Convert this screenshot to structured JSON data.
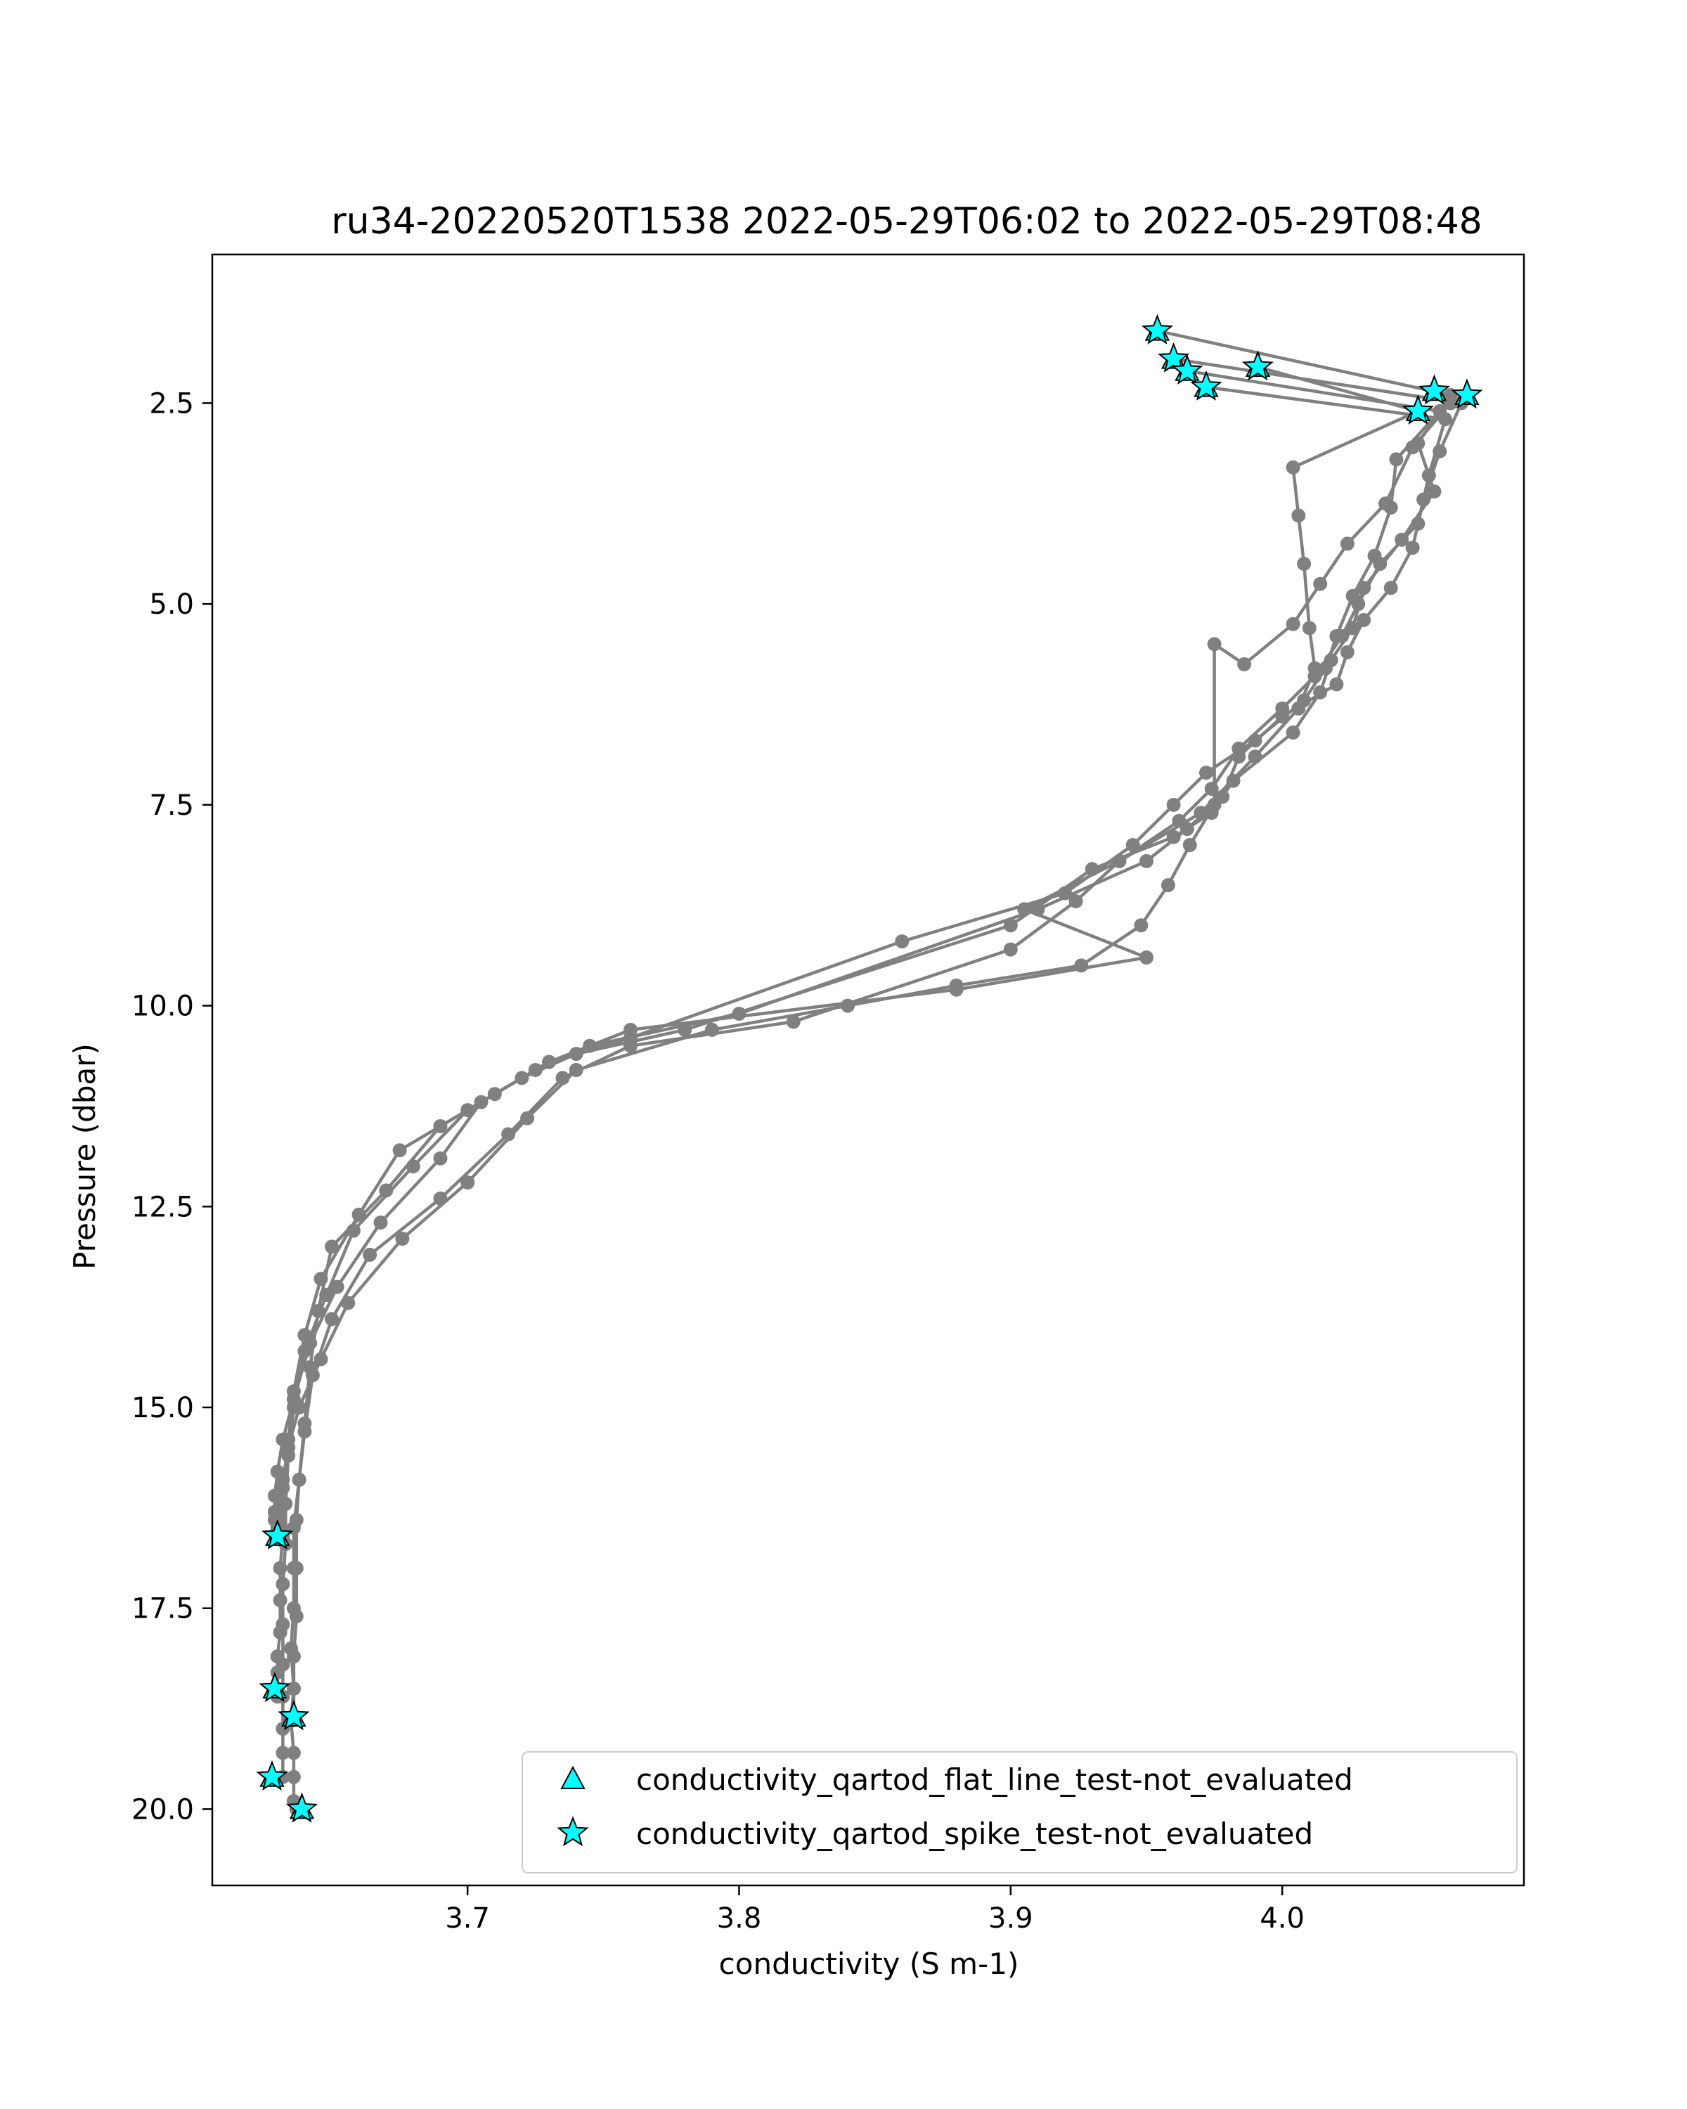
{
  "chart_data": {
    "type": "line",
    "title": "ru34-20220520T1538 2022-05-29T06:02 to 2022-05-29T08:48",
    "xlabel": "conductivity (S m-1)",
    "ylabel": "Pressure (dbar)",
    "xlim": [
      3.606,
      4.089
    ],
    "ylim": [
      20.95,
      0.65
    ],
    "y_inverted": true,
    "xticks": [
      3.7,
      3.8,
      3.9,
      4.0
    ],
    "xtick_labels": [
      "3.7",
      "3.8",
      "3.9",
      "4.0"
    ],
    "yticks": [
      2.5,
      5.0,
      7.5,
      10.0,
      12.5,
      15.0,
      17.5,
      20.0
    ],
    "ytick_labels": [
      "2.5",
      "5.0",
      "7.5",
      "10.0",
      "12.5",
      "15.0",
      "17.5",
      "20.0"
    ],
    "grid": false,
    "colors": {
      "profile_line": "#808080",
      "flag_fill": "#00ffff",
      "flag_edge": "#000000"
    },
    "legend": {
      "placement": "lower-right",
      "entries": [
        {
          "label": "conductivity_qartod_flat_line_test-not_evaluated",
          "marker": "triangle"
        },
        {
          "label": "conductivity_qartod_spike_test-not_evaluated",
          "marker": "star"
        }
      ]
    },
    "series": [
      {
        "x": [
          3.954,
          4.062,
          4.05,
          4.056,
          4.044,
          4.03,
          4.026,
          4.018,
          4.014,
          4.004,
          3.982,
          3.974,
          3.96,
          3.93,
          3.9,
          3.78,
          3.74,
          3.72,
          3.69,
          3.67,
          3.65,
          3.645,
          3.642,
          3.64,
          3.638,
          3.636,
          3.636,
          3.636,
          3.635,
          3.636,
          3.635,
          3.636,
          3.636,
          3.636,
          3.637
        ],
        "y": [
          1.6,
          2.4,
          3.0,
          3.6,
          4.2,
          4.8,
          5.3,
          5.7,
          6.1,
          6.6,
          7.2,
          7.6,
          7.9,
          8.3,
          9.0,
          10.3,
          10.6,
          10.9,
          11.5,
          12.3,
          13.0,
          13.8,
          14.5,
          15.2,
          15.9,
          16.5,
          17.0,
          17.5,
          18.0,
          18.5,
          18.9,
          19.3,
          19.6,
          19.9,
          20.0
        ]
      },
      {
        "x": [
          3.96,
          4.066,
          4.058,
          4.052,
          4.048,
          4.04,
          4.03,
          4.024,
          4.02,
          4.0,
          3.984,
          3.978,
          3.965,
          3.95,
          3.91,
          3.8,
          3.745,
          3.725,
          3.7,
          3.68,
          3.658,
          3.648,
          3.64,
          3.636,
          3.634,
          3.633,
          3.633,
          3.632,
          3.632,
          3.632,
          3.632,
          3.632,
          3.632,
          3.632
        ],
        "y": [
          1.95,
          2.5,
          3.1,
          3.7,
          4.3,
          4.8,
          5.2,
          5.6,
          6.0,
          6.4,
          6.9,
          7.4,
          7.8,
          8.2,
          8.8,
          10.1,
          10.5,
          10.8,
          11.3,
          12.0,
          12.8,
          13.6,
          14.3,
          15.0,
          15.6,
          16.2,
          16.7,
          17.2,
          17.7,
          18.2,
          18.6,
          19.0,
          19.3,
          19.6
        ]
      },
      {
        "x": [
          3.965,
          4.058,
          4.042,
          4.04,
          4.034,
          4.026,
          4.02,
          4.016,
          4.008,
          3.99,
          3.972,
          3.96,
          3.945,
          3.92,
          3.86,
          3.76,
          3.73,
          3.71,
          3.675,
          3.66,
          3.646,
          3.64,
          3.636,
          3.634,
          3.632,
          3.632,
          3.631,
          3.631,
          3.631,
          3.63,
          3.63,
          3.63,
          3.63
        ],
        "y": [
          2.1,
          2.6,
          3.2,
          3.8,
          4.4,
          4.9,
          5.4,
          5.8,
          6.2,
          6.7,
          7.1,
          7.5,
          8.0,
          8.6,
          9.2,
          10.4,
          10.7,
          11.1,
          11.8,
          12.6,
          13.4,
          14.1,
          14.8,
          15.4,
          16.0,
          16.6,
          17.0,
          17.4,
          17.8,
          18.1,
          18.3,
          18.5,
          18.6
        ]
      },
      {
        "x": [
          3.972,
          4.06,
          4.054,
          4.05,
          4.036,
          4.028,
          4.022,
          4.012,
          4.0,
          3.984,
          3.974,
          3.962,
          3.94,
          3.924,
          3.9,
          3.82,
          3.76,
          3.735,
          3.715,
          3.69,
          3.664,
          3.65,
          3.643,
          3.64,
          3.638,
          3.637,
          3.637,
          3.637,
          3.636,
          3.636,
          3.636
        ],
        "y": [
          2.3,
          2.7,
          3.4,
          4.0,
          4.5,
          5.0,
          5.4,
          5.9,
          6.3,
          6.8,
          7.3,
          7.7,
          8.2,
          8.7,
          9.3,
          10.2,
          10.5,
          10.9,
          11.6,
          12.4,
          13.1,
          13.9,
          14.6,
          15.3,
          15.9,
          16.4,
          17.0,
          17.6,
          18.1,
          18.5,
          18.85
        ]
      },
      {
        "x": [
          3.991,
          4.05,
          4.004,
          4.006,
          4.008,
          4.01,
          4.012,
          4.006,
          3.99,
          3.97,
          3.94,
          3.905,
          3.95,
          3.88,
          3.76,
          3.73,
          3.705,
          3.69,
          3.668,
          3.652,
          3.642,
          3.636,
          3.632,
          3.63,
          3.629,
          3.629,
          3.629,
          3.63,
          3.63,
          3.63
        ],
        "y": [
          2.05,
          2.6,
          3.3,
          3.9,
          4.5,
          5.3,
          5.8,
          6.3,
          6.9,
          7.6,
          8.2,
          8.8,
          9.4,
          9.8,
          10.3,
          10.7,
          11.2,
          11.9,
          12.7,
          13.5,
          14.2,
          14.9,
          15.4,
          15.8,
          16.1,
          16.3,
          16.4,
          16.5,
          16.55,
          16.6
        ]
      },
      {
        "x": [
          4.056,
          4.062,
          4.048,
          4.038,
          4.024,
          4.014,
          4.004,
          3.986,
          3.975,
          3.975,
          3.966,
          3.958,
          3.948,
          3.926,
          3.88,
          3.84,
          3.79,
          3.74,
          3.722,
          3.7,
          3.676,
          3.656,
          3.646,
          3.638,
          3.634,
          3.632,
          3.631,
          3.631
        ],
        "y": [
          2.35,
          2.5,
          3.05,
          3.75,
          4.25,
          4.75,
          5.25,
          5.75,
          5.5,
          7.5,
          8.0,
          8.5,
          9.0,
          9.5,
          9.75,
          10.0,
          10.3,
          10.8,
          11.4,
          12.2,
          12.9,
          13.7,
          14.4,
          15.0,
          15.5,
          15.9,
          16.2,
          16.5
        ]
      }
    ],
    "flagged_points": [
      {
        "x": 3.954,
        "y": 1.6
      },
      {
        "x": 3.96,
        "y": 1.95
      },
      {
        "x": 3.965,
        "y": 2.1
      },
      {
        "x": 3.972,
        "y": 2.3
      },
      {
        "x": 3.991,
        "y": 2.05
      },
      {
        "x": 4.056,
        "y": 2.35
      },
      {
        "x": 4.068,
        "y": 2.4
      },
      {
        "x": 4.05,
        "y": 2.6
      },
      {
        "x": 3.63,
        "y": 16.6
      },
      {
        "x": 3.629,
        "y": 18.5
      },
      {
        "x": 3.636,
        "y": 18.85
      },
      {
        "x": 3.628,
        "y": 19.6
      },
      {
        "x": 3.639,
        "y": 20.0
      }
    ]
  }
}
